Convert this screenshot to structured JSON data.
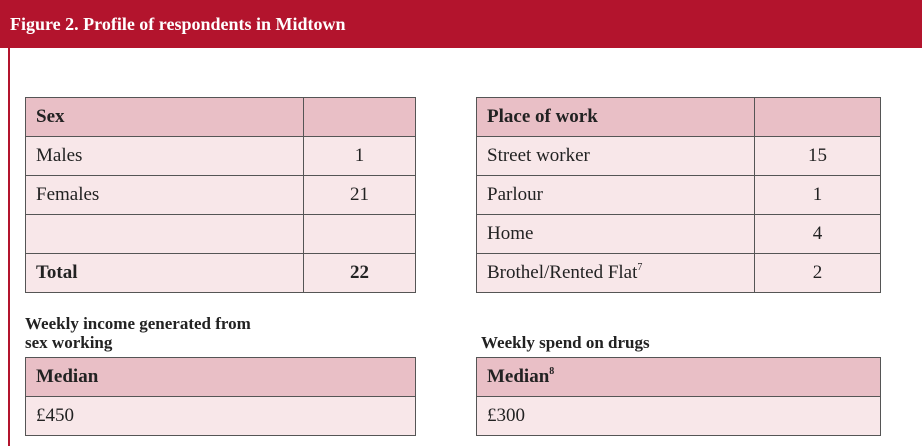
{
  "header": {
    "title": "Figure 2. Profile of respondents in Midtown"
  },
  "sex_table": {
    "header": "Sex",
    "rows": [
      {
        "label": "Males",
        "value": 1
      },
      {
        "label": "Females",
        "value": 21
      }
    ],
    "total": {
      "label": "Total",
      "value": 22
    }
  },
  "work_table": {
    "header": "Place of work",
    "rows": [
      {
        "label": "Street worker",
        "value": 15
      },
      {
        "label": "Parlour",
        "value": 1
      },
      {
        "label": "Home",
        "value": 4
      },
      {
        "label": "Brothel/Rented Flat",
        "note": "7",
        "value": 2
      }
    ]
  },
  "income": {
    "caption": [
      "Weekly income generated from",
      "sex working"
    ],
    "header": "Median",
    "value": "£450"
  },
  "drugs": {
    "caption": [
      "Weekly spend on drugs"
    ],
    "header": "Median",
    "note": "8",
    "value": "£300"
  }
}
